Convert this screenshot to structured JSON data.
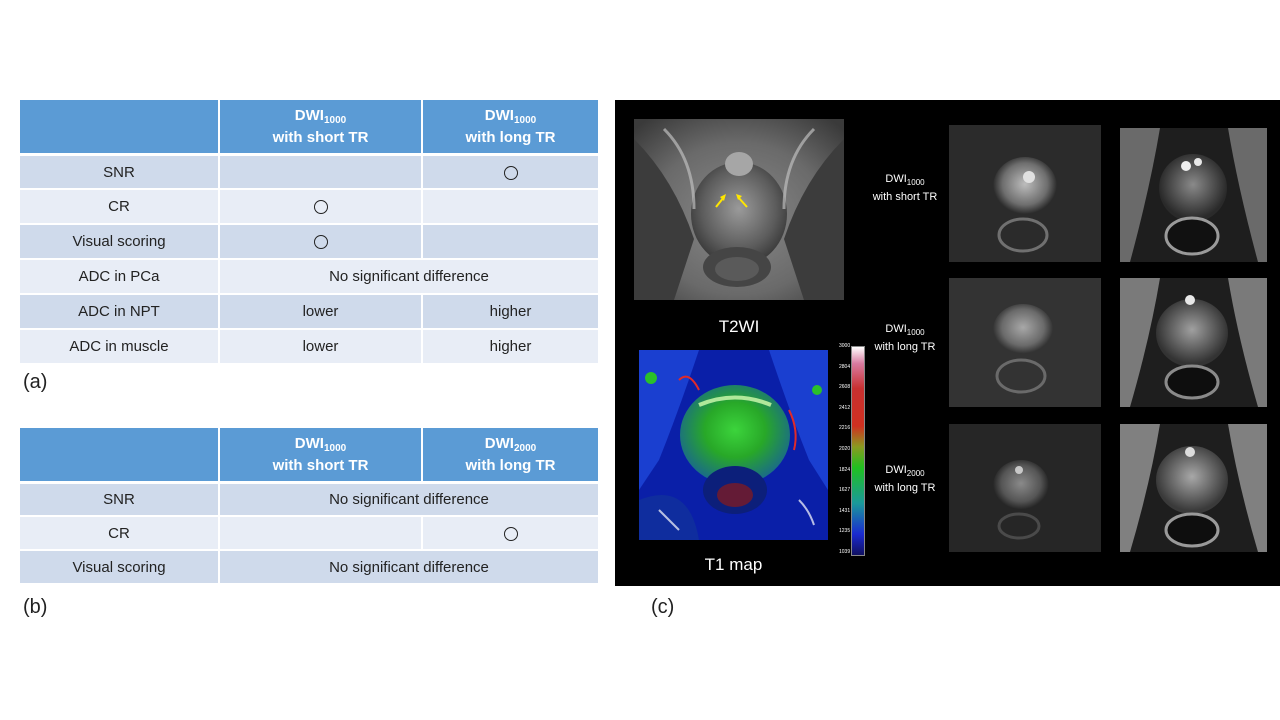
{
  "table_a": {
    "header": {
      "col2_line1": "DWI",
      "col2_sub": "1000",
      "col2_line2": "with short TR",
      "col3_line1": "DWI",
      "col3_sub": "1000",
      "col3_line2": "with long TR"
    },
    "rows": [
      {
        "label": "SNR",
        "short_tr": "",
        "long_tr": "○"
      },
      {
        "label": "CR",
        "short_tr": "○",
        "long_tr": ""
      },
      {
        "label": "Visual scoring",
        "short_tr": "○",
        "long_tr": ""
      },
      {
        "label": "ADC in PCa",
        "merged": "No significant difference"
      },
      {
        "label": "ADC in NPT",
        "short_tr": "lower",
        "long_tr": "higher"
      },
      {
        "label": "ADC in muscle",
        "short_tr": "lower",
        "long_tr": "higher"
      }
    ],
    "panel_label": "(a)"
  },
  "table_b": {
    "header": {
      "col2_line1": "DWI",
      "col2_sub": "1000",
      "col2_line2": "with short TR",
      "col3_line1": "DWI",
      "col3_sub": "2000",
      "col3_line2": "with long TR"
    },
    "rows": [
      {
        "label": "SNR",
        "merged": "No significant difference"
      },
      {
        "label": "CR",
        "short_tr": "",
        "long_tr": "○"
      },
      {
        "label": "Visual scoring",
        "merged": "No significant difference"
      }
    ],
    "panel_label": "(b)"
  },
  "figure_c": {
    "panel_label": "(c)",
    "t2wi_caption": "T2WI",
    "t1map_caption": "T1 map",
    "colorbar_ticks": [
      "3000",
      "2804",
      "2608",
      "2412",
      "2216",
      "2020",
      "1824",
      "1627",
      "1431",
      "1235",
      "1039"
    ],
    "dwi_rows": [
      {
        "prefix": "DWI",
        "sub": "1000",
        "desc": "with short TR"
      },
      {
        "prefix": "DWI",
        "sub": "1000",
        "desc": "with long TR"
      },
      {
        "prefix": "DWI",
        "sub": "2000",
        "desc": "with long TR"
      }
    ],
    "arrow_color": "#ffe600"
  }
}
